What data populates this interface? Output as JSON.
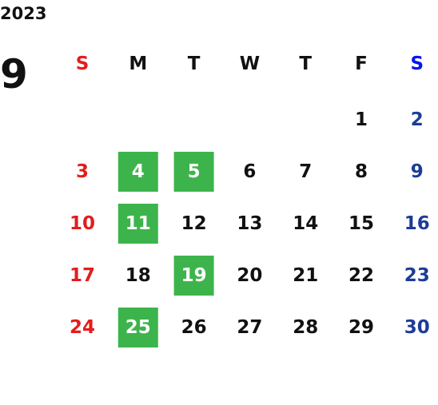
{
  "year": "2023",
  "month": "9",
  "weekdays": [
    "S",
    "M",
    "T",
    "W",
    "T",
    "F",
    "S"
  ],
  "weeks": [
    [
      null,
      null,
      null,
      null,
      null,
      1,
      2
    ],
    [
      3,
      4,
      5,
      6,
      7,
      8,
      9
    ],
    [
      10,
      11,
      12,
      13,
      14,
      15,
      16
    ],
    [
      17,
      18,
      19,
      20,
      21,
      22,
      23
    ],
    [
      24,
      25,
      26,
      27,
      28,
      29,
      30
    ]
  ],
  "highlighted": [
    4,
    5,
    11,
    19,
    25
  ],
  "colors": {
    "sunday": "#e21d1d",
    "saturday": "#1d3c96",
    "saturday_header": "#0015ee",
    "highlight": "#3cb44b",
    "highlight_text": "#ffffff",
    "default": "#111111"
  }
}
